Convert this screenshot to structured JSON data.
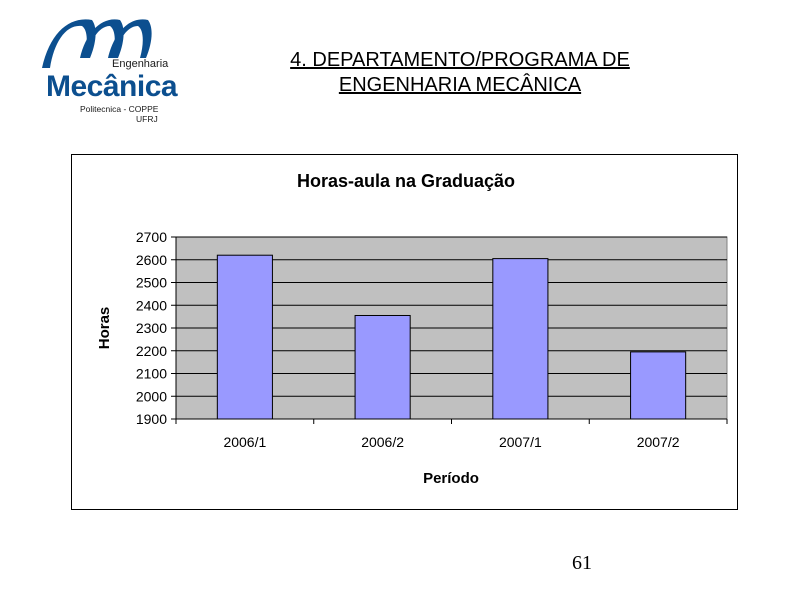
{
  "logo": {
    "top_text": "Engenharia",
    "main_text": "Mecânica",
    "sub_text_1": "Politecnica - COPPE",
    "sub_text_2": "UFRJ",
    "color": "#0c4f8f"
  },
  "heading": {
    "line1": "4. DEPARTAMENTO/PROGRAMA DE",
    "line2": "ENGENHARIA MECÂNICA"
  },
  "chart_data": {
    "type": "bar",
    "title": "Horas-aula na Graduação",
    "xlabel": "Período",
    "ylabel": "Horas",
    "categories": [
      "2006/1",
      "2006/2",
      "2007/1",
      "2007/2"
    ],
    "values": [
      2620,
      2355,
      2605,
      2195
    ],
    "ylim": [
      1900,
      2700
    ],
    "yticks": [
      1900,
      2000,
      2100,
      2200,
      2300,
      2400,
      2500,
      2600,
      2700
    ],
    "grid": true,
    "plot_background": "#c0c0c0",
    "bar_color": "#9999ff"
  },
  "page_number": "61"
}
